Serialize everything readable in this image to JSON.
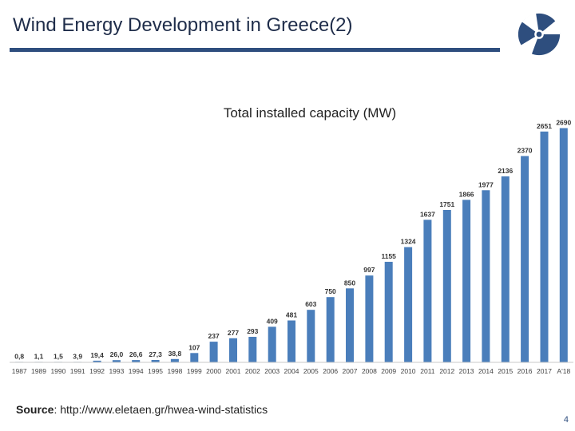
{
  "slide": {
    "title": "Wind Energy Development in Greece(2)",
    "source_label": "Source",
    "source_text": ": http://www.eletaen.gr/hwea-wind-statistics",
    "page_number": "4",
    "logo_name": "wind-turbine-logo-icon"
  },
  "colors": {
    "bar": "#4a7ebb",
    "title_rule": "#2e4e7e",
    "logo": "#2e4e7e"
  },
  "chart_data": {
    "type": "bar",
    "title": "Total installed capacity (MW)",
    "xlabel": "",
    "ylabel": "",
    "ylim": [
      0,
      2750
    ],
    "grid": false,
    "categories": [
      "1987",
      "1989",
      "1990",
      "1991",
      "1992",
      "1993",
      "1994",
      "1995",
      "1998",
      "1999",
      "2000",
      "2001",
      "2002",
      "2003",
      "2004",
      "2005",
      "2006",
      "2007",
      "2008",
      "2009",
      "2010",
      "2011",
      "2012",
      "2013",
      "2014",
      "2015",
      "2016",
      "2017",
      "A'18"
    ],
    "values": [
      0.8,
      1.1,
      1.5,
      3.9,
      19.4,
      26.0,
      26.6,
      27.3,
      38.8,
      107,
      237,
      277,
      293,
      409,
      481,
      603,
      750,
      850,
      997,
      1155,
      1324,
      1637,
      1751,
      1866,
      1977,
      2136,
      2370,
      2651,
      2690
    ],
    "labels": [
      "0,8",
      "1,1",
      "1,5",
      "3,9",
      "19,4",
      "26,0",
      "26,6",
      "27,3",
      "38,8",
      "107",
      "237",
      "277",
      "293",
      "409",
      "481",
      "603",
      "750",
      "850",
      "997",
      "1155",
      "1324",
      "1637",
      "1751",
      "1866",
      "1977",
      "2136",
      "2370",
      "2651",
      "2690"
    ]
  }
}
